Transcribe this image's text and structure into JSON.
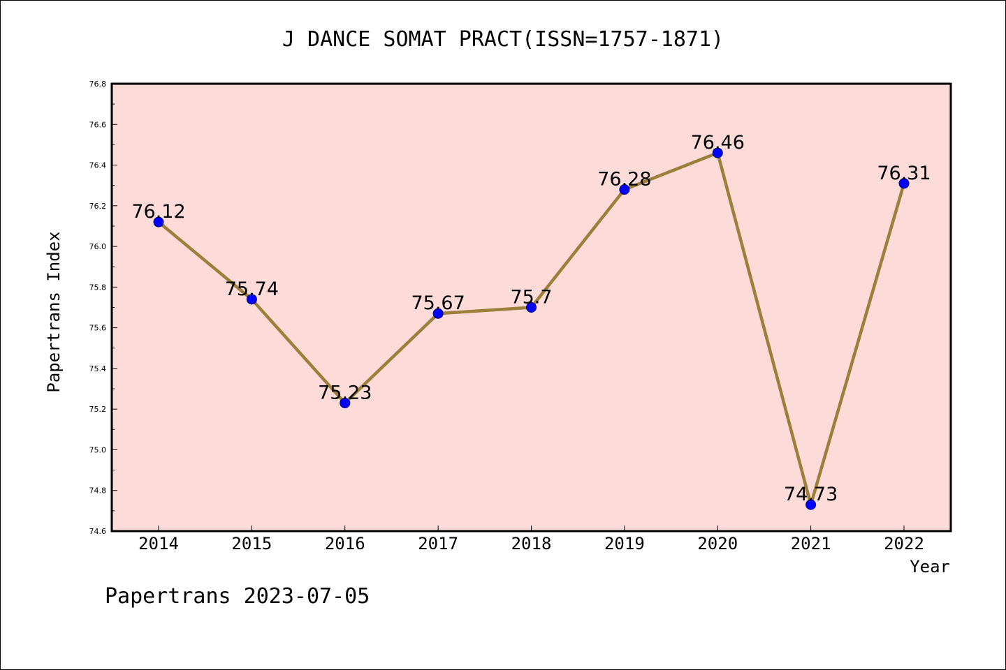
{
  "chart_data": {
    "type": "line",
    "title": "J DANCE SOMAT PRACT(ISSN=1757-1871)",
    "xlabel": "Year",
    "ylabel": "Papertrans Index",
    "x": [
      "2014",
      "2015",
      "2016",
      "2017",
      "2018",
      "2019",
      "2020",
      "2021",
      "2022"
    ],
    "values": [
      76.12,
      75.74,
      75.23,
      75.67,
      75.7,
      76.28,
      76.46,
      74.73,
      76.31
    ],
    "data_labels": [
      "76.12",
      "75.74",
      "75.23",
      "75.67",
      "75.7",
      "76.28",
      "76.46",
      "74.73",
      "76.31"
    ],
    "ylim": [
      74.6,
      76.8
    ],
    "yticks": [
      "74.6",
      "74.8",
      "75.0",
      "75.2",
      "75.4",
      "75.6",
      "75.8",
      "76.0",
      "76.2",
      "76.4",
      "76.6",
      "76.8"
    ],
    "grid": false,
    "colors": {
      "plot_background": "#fddbd9",
      "line": "#9b7f3b",
      "marker": "#0000ff"
    }
  },
  "footer": "Papertrans 2023-07-05"
}
